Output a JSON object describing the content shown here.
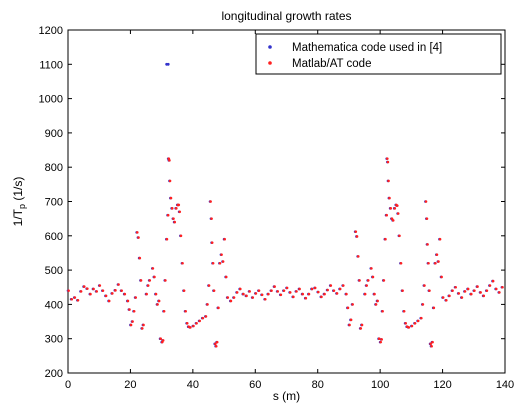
{
  "chart_data": {
    "type": "scatter",
    "title": "longitudinal growth rates",
    "xlabel": "s (m)",
    "ylabel_main": "1/T",
    "ylabel_sub": "p",
    "ylabel_unit": "(1/s)",
    "xlim": [
      0,
      140
    ],
    "ylim": [
      200,
      1200
    ],
    "xticks": [
      0,
      20,
      40,
      60,
      80,
      100,
      120,
      140
    ],
    "yticks": [
      200,
      300,
      400,
      500,
      600,
      700,
      800,
      900,
      1000,
      1100,
      1200
    ],
    "grid": false,
    "legend_position": "top-right",
    "series": [
      {
        "name": "Mathematica code used in [4]",
        "color": "#3333cc",
        "marker": "dot",
        "points": [
          [
            0,
            440
          ],
          [
            1,
            415
          ],
          [
            2,
            420
          ],
          [
            3,
            412
          ],
          [
            4,
            438
          ],
          [
            5,
            452
          ],
          [
            6,
            446
          ],
          [
            7,
            430
          ],
          [
            8,
            445
          ],
          [
            9,
            438
          ],
          [
            10,
            455
          ],
          [
            11,
            440
          ],
          [
            12,
            425
          ],
          [
            13,
            410
          ],
          [
            14,
            432
          ],
          [
            15,
            441
          ],
          [
            16,
            458
          ],
          [
            17,
            440
          ],
          [
            18,
            430
          ],
          [
            19,
            410
          ],
          [
            19.5,
            385
          ],
          [
            20,
            340
          ],
          [
            20.5,
            350
          ],
          [
            21,
            380
          ],
          [
            21.5,
            420
          ],
          [
            22,
            610
          ],
          [
            22.4,
            595
          ],
          [
            22.8,
            535
          ],
          [
            23.2,
            470
          ],
          [
            23.6,
            330
          ],
          [
            24,
            340
          ],
          [
            25,
            430
          ],
          [
            25.5,
            455
          ],
          [
            26,
            470
          ],
          [
            27,
            505
          ],
          [
            27.5,
            480
          ],
          [
            28,
            430
          ],
          [
            28.5,
            400
          ],
          [
            29,
            410
          ],
          [
            29.5,
            300
          ],
          [
            30,
            290
          ],
          [
            30.3,
            295
          ],
          [
            30.6,
            380
          ],
          [
            31,
            470
          ],
          [
            31.5,
            590
          ],
          [
            31.9,
            660
          ],
          [
            32.1,
            825
          ],
          [
            32.3,
            820
          ],
          [
            32.5,
            760
          ],
          [
            32.8,
            710
          ],
          [
            33.2,
            680
          ],
          [
            33.6,
            650
          ],
          [
            34,
            640
          ],
          [
            34.5,
            680
          ],
          [
            35,
            690
          ],
          [
            35.3,
            690
          ],
          [
            35.6,
            670
          ],
          [
            36,
            600
          ],
          [
            36.5,
            520
          ],
          [
            37,
            440
          ],
          [
            37.5,
            380
          ],
          [
            38,
            345
          ],
          [
            38.5,
            335
          ],
          [
            39,
            333
          ],
          [
            40,
            337
          ],
          [
            41,
            345
          ],
          [
            42,
            352
          ],
          [
            43,
            360
          ],
          [
            44,
            365
          ],
          [
            44.5,
            400
          ],
          [
            45,
            455
          ],
          [
            45.5,
            700
          ],
          [
            45.8,
            650
          ],
          [
            46,
            580
          ],
          [
            46.3,
            520
          ],
          [
            46.6,
            440
          ],
          [
            47,
            285
          ],
          [
            47.3,
            278
          ],
          [
            47.6,
            290
          ],
          [
            48,
            390
          ],
          [
            48.5,
            520
          ],
          [
            49,
            545
          ],
          [
            49.5,
            525
          ],
          [
            50,
            590
          ],
          [
            50.5,
            480
          ],
          [
            51,
            420
          ],
          [
            52,
            410
          ],
          [
            53,
            420
          ],
          [
            54,
            435
          ],
          [
            55,
            445
          ],
          [
            56,
            430
          ],
          [
            57,
            425
          ],
          [
            58,
            438
          ],
          [
            59,
            420
          ],
          [
            60,
            432
          ],
          [
            61,
            440
          ],
          [
            62,
            428
          ],
          [
            63,
            415
          ],
          [
            64,
            430
          ],
          [
            65,
            440
          ],
          [
            66,
            452
          ],
          [
            67,
            438
          ],
          [
            68,
            428
          ],
          [
            69,
            440
          ],
          [
            70,
            448
          ],
          [
            71,
            435
          ],
          [
            72,
            422
          ],
          [
            73,
            438
          ],
          [
            74,
            445
          ],
          [
            75,
            430
          ],
          [
            76,
            418
          ],
          [
            77,
            430
          ],
          [
            78,
            445
          ],
          [
            79,
            448
          ],
          [
            80,
            436
          ],
          [
            81,
            422
          ],
          [
            82,
            430
          ],
          [
            83,
            442
          ],
          [
            84,
            455
          ],
          [
            85,
            440
          ],
          [
            86,
            432
          ],
          [
            87,
            445
          ],
          [
            88,
            455
          ],
          [
            89,
            430
          ],
          [
            89.5,
            390
          ],
          [
            90,
            340
          ],
          [
            90.5,
            355
          ],
          [
            91,
            400
          ],
          [
            92,
            612
          ],
          [
            92.4,
            598
          ],
          [
            92.8,
            540
          ],
          [
            93.2,
            470
          ],
          [
            93.6,
            330
          ],
          [
            94,
            340
          ],
          [
            95,
            430
          ],
          [
            95.5,
            455
          ],
          [
            96,
            470
          ],
          [
            97,
            505
          ],
          [
            97.5,
            480
          ],
          [
            98,
            430
          ],
          [
            98.5,
            400
          ],
          [
            99,
            410
          ],
          [
            99.5,
            300
          ],
          [
            100,
            290
          ],
          [
            100.3,
            298
          ],
          [
            100.6,
            380
          ],
          [
            101,
            470
          ],
          [
            101.5,
            590
          ],
          [
            101.9,
            660
          ],
          [
            102.1,
            825
          ],
          [
            102.3,
            815
          ],
          [
            102.5,
            760
          ],
          [
            102.8,
            710
          ],
          [
            103.2,
            680
          ],
          [
            103.6,
            650
          ],
          [
            104,
            645
          ],
          [
            104.5,
            680
          ],
          [
            105,
            690
          ],
          [
            105.3,
            688
          ],
          [
            105.6,
            665
          ],
          [
            106,
            600
          ],
          [
            106.5,
            520
          ],
          [
            107,
            440
          ],
          [
            107.5,
            380
          ],
          [
            108,
            345
          ],
          [
            108.5,
            335
          ],
          [
            109,
            333
          ],
          [
            110,
            337
          ],
          [
            111,
            345
          ],
          [
            112,
            352
          ],
          [
            113,
            360
          ],
          [
            113.5,
            400
          ],
          [
            114,
            455
          ],
          [
            114.5,
            700
          ],
          [
            114.8,
            650
          ],
          [
            115,
            575
          ],
          [
            115.3,
            520
          ],
          [
            115.6,
            440
          ],
          [
            116,
            285
          ],
          [
            116.3,
            278
          ],
          [
            116.6,
            290
          ],
          [
            117,
            390
          ],
          [
            117.5,
            520
          ],
          [
            118,
            545
          ],
          [
            118.5,
            525
          ],
          [
            119,
            590
          ],
          [
            119.5,
            480
          ],
          [
            120,
            420
          ],
          [
            121,
            412
          ],
          [
            122,
            425
          ],
          [
            123,
            440
          ],
          [
            124,
            450
          ],
          [
            125,
            432
          ],
          [
            126,
            420
          ],
          [
            127,
            438
          ],
          [
            128,
            445
          ],
          [
            129,
            430
          ],
          [
            130,
            440
          ],
          [
            131,
            452
          ],
          [
            132,
            435
          ],
          [
            133,
            425
          ],
          [
            134,
            440
          ],
          [
            135,
            455
          ],
          [
            136,
            468
          ],
          [
            137,
            445
          ],
          [
            138,
            435
          ],
          [
            139,
            450
          ]
        ]
      },
      {
        "name": "Matlab/AT code",
        "color": "#ff2020",
        "marker": "dot",
        "points": []
      }
    ],
    "outlier": {
      "series_index": 0,
      "point": [
        31.6,
        1100
      ]
    }
  }
}
